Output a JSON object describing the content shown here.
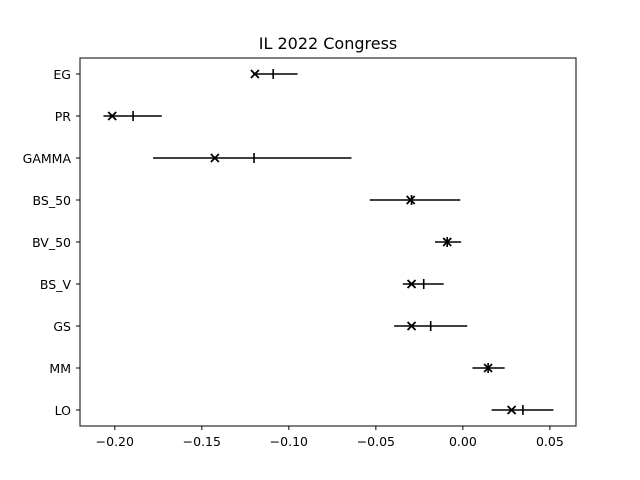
{
  "chart_data": {
    "type": "errorbar",
    "title": "IL 2022 Congress",
    "xlabel": "",
    "ylabel": "",
    "xlim": [
      -0.22,
      0.065
    ],
    "x_ticks": [
      -0.2,
      -0.15,
      -0.1,
      -0.05,
      0.0,
      0.05
    ],
    "x_tick_labels": [
      "−0.20",
      "−0.15",
      "−0.10",
      "−0.05",
      "0.00",
      "0.05"
    ],
    "grid": false,
    "categories": [
      "EG",
      "PR",
      "GAMMA",
      "BS_50",
      "BV_50",
      "BS_V",
      "GS",
      "MM",
      "LO"
    ],
    "rows": [
      {
        "label": "EG",
        "low": -0.1205,
        "high": -0.095,
        "mid": -0.109,
        "point": -0.1195
      },
      {
        "label": "PR",
        "low": -0.2065,
        "high": -0.173,
        "mid": -0.1895,
        "point": -0.2015
      },
      {
        "label": "GAMMA",
        "low": -0.178,
        "high": -0.064,
        "mid": -0.12,
        "point": -0.1425
      },
      {
        "label": "BS_50",
        "low": -0.0535,
        "high": -0.0015,
        "mid": -0.0295,
        "point": -0.03
      },
      {
        "label": "BV_50",
        "low": -0.016,
        "high": -0.001,
        "mid": -0.009,
        "point": -0.009
      },
      {
        "label": "BS_V",
        "low": -0.0345,
        "high": -0.011,
        "mid": -0.0225,
        "point": -0.0295
      },
      {
        "label": "GS",
        "low": -0.0395,
        "high": 0.0025,
        "mid": -0.0185,
        "point": -0.0295
      },
      {
        "label": "MM",
        "low": 0.0055,
        "high": 0.024,
        "mid": 0.0145,
        "point": 0.0145
      },
      {
        "label": "LO",
        "low": 0.0165,
        "high": 0.052,
        "mid": 0.0345,
        "point": 0.028
      }
    ]
  }
}
